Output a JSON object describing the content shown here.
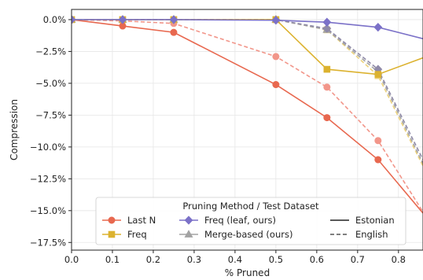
{
  "chart_data": {
    "type": "line",
    "xlabel": "% Pruned",
    "ylabel": "Compression",
    "xlim": [
      0.0,
      0.86
    ],
    "ylim": [
      -0.181,
      0.008
    ],
    "xticks": [
      0.0,
      0.1,
      0.2,
      0.3,
      0.4,
      0.5,
      0.6,
      0.7,
      0.8
    ],
    "xtick_labels": [
      "0.0",
      "0.1",
      "0.2",
      "0.3",
      "0.4",
      "0.5",
      "0.6",
      "0.7",
      "0.8"
    ],
    "yticks": [
      0.0,
      -0.025,
      -0.05,
      -0.075,
      -0.1,
      -0.125,
      -0.15,
      -0.175
    ],
    "ytick_labels": [
      "0.0%",
      "−2.5%",
      "−5.0%",
      "−7.5%",
      "−10.0%",
      "−12.5%",
      "−15.0%",
      "−17.5%"
    ],
    "grid": true,
    "legend": {
      "title": "Pruning Method / Test Dataset",
      "placement": "lower-center",
      "entries": [
        {
          "label": "Last N",
          "kind": "method",
          "color": "#e8684f",
          "marker": "circle"
        },
        {
          "label": "Freq",
          "kind": "method",
          "color": "#dcb22f",
          "marker": "square"
        },
        {
          "label": "Freq (leaf, ours)",
          "kind": "method",
          "color": "#7b71c8",
          "marker": "diamond"
        },
        {
          "label": "Merge-based (ours)",
          "kind": "method",
          "color": "#a3a3a3",
          "marker": "triangle"
        },
        {
          "label": "Estonian",
          "kind": "dataset",
          "color": "#222222",
          "dash": "solid"
        },
        {
          "label": "English",
          "kind": "dataset",
          "color": "#555555",
          "dash": "dashed"
        }
      ]
    },
    "series": [
      {
        "method": "Last N",
        "dataset": "English",
        "color": "#f2968a",
        "marker": "circle",
        "dash": "dashed",
        "x": [
          0.0,
          0.125,
          0.25,
          0.5,
          0.625,
          0.75,
          0.86
        ],
        "y": [
          0.0,
          -0.001,
          -0.003,
          -0.029,
          -0.053,
          -0.095,
          -0.151
        ]
      },
      {
        "method": "Freq",
        "dataset": "English",
        "color": "#ecd27c",
        "marker": "square",
        "dash": "dashed",
        "x": [
          0.0,
          0.125,
          0.25,
          0.5,
          0.625,
          0.75,
          0.86
        ],
        "y": [
          0.0,
          0.0,
          0.0,
          0.0,
          -0.008,
          -0.044,
          -0.115
        ]
      },
      {
        "method": "Merge-based (ours)",
        "dataset": "English",
        "color": "#a3a3a3",
        "marker": "triangle",
        "dash": "dashed",
        "x": [
          0.0,
          0.125,
          0.25,
          0.5,
          0.625,
          0.75,
          0.86
        ],
        "y": [
          0.0,
          0.0,
          0.0,
          0.0,
          -0.008,
          -0.041,
          -0.113
        ]
      },
      {
        "method": "Freq (leaf, ours)",
        "dataset": "English",
        "color": "#8f8aa8",
        "marker": "diamond",
        "dash": "dashed",
        "x": [
          0.0,
          0.125,
          0.25,
          0.5,
          0.625,
          0.75,
          0.86
        ],
        "y": [
          0.0,
          0.0,
          0.0,
          0.0,
          -0.007,
          -0.039,
          -0.11
        ]
      },
      {
        "method": "Last N",
        "dataset": "Estonian",
        "color": "#e8684f",
        "marker": "circle",
        "dash": "solid",
        "x": [
          0.0,
          0.125,
          0.25,
          0.5,
          0.625,
          0.75,
          0.86
        ],
        "y": [
          0.0,
          -0.005,
          -0.01,
          -0.051,
          -0.077,
          -0.11,
          -0.152
        ]
      },
      {
        "method": "Freq",
        "dataset": "Estonian",
        "color": "#dcb22f",
        "marker": "square",
        "dash": "solid",
        "x": [
          0.0,
          0.125,
          0.25,
          0.5,
          0.625,
          0.75,
          0.86
        ],
        "y": [
          0.0,
          0.0,
          0.0,
          0.0,
          -0.039,
          -0.043,
          -0.03
        ]
      },
      {
        "method": "Freq (leaf, ours)",
        "dataset": "Estonian",
        "color": "#7b71c8",
        "marker": "diamond",
        "dash": "solid",
        "x": [
          0.0,
          0.125,
          0.25,
          0.5,
          0.625,
          0.75,
          0.86
        ],
        "y": [
          0.0,
          0.0,
          0.0,
          -0.0005,
          -0.002,
          -0.006,
          -0.015
        ]
      }
    ]
  }
}
